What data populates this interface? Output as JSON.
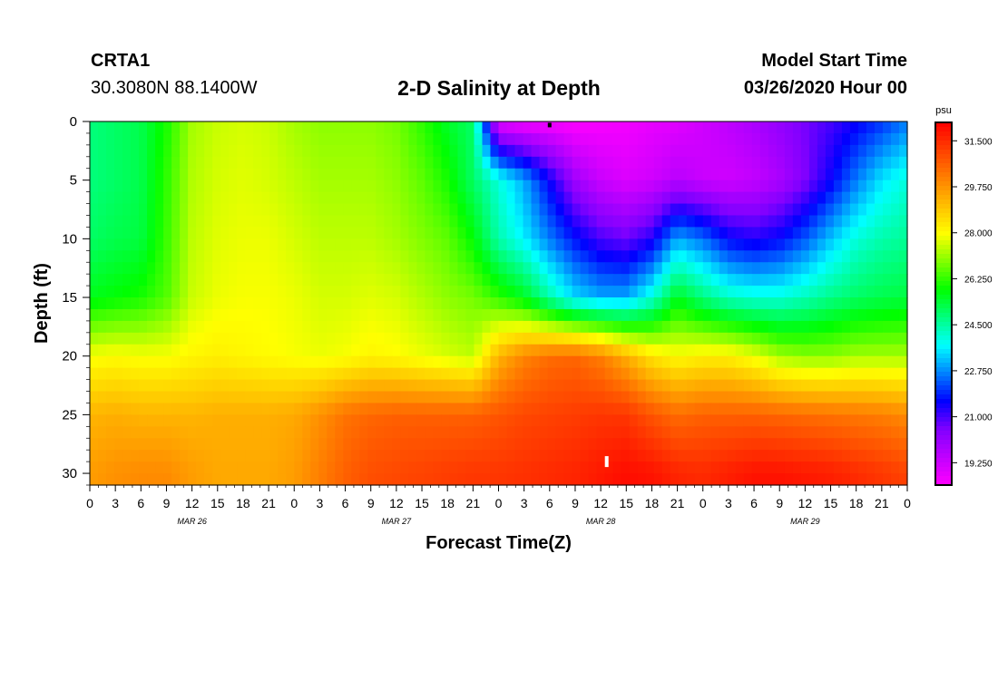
{
  "header": {
    "station": "CRTA1",
    "coords": "30.3080N 88.1400W",
    "title": "2-D Salinity at Depth",
    "model_start_label": "Model Start Time",
    "model_start_value": "03/26/2020 Hour 00"
  },
  "colors": {
    "scale": [
      "#ff00ff",
      "#c000ff",
      "#8000ff",
      "#0000ff",
      "#0080ff",
      "#00ffff",
      "#00ff80",
      "#00ff00",
      "#80ff00",
      "#ffff00",
      "#ffc000",
      "#ff8000",
      "#ff4000",
      "#ff0000"
    ]
  },
  "chart_data": {
    "type": "heatmap",
    "title": "2-D Salinity at Depth",
    "xlabel": "Forecast Time(Z)",
    "ylabel": "Depth (ft)",
    "x_ticks": [
      "0",
      "3",
      "6",
      "9",
      "12",
      "15",
      "18",
      "21",
      "0",
      "3",
      "6",
      "9",
      "12",
      "15",
      "18",
      "21",
      "0",
      "3",
      "6",
      "9",
      "12",
      "15",
      "18",
      "21",
      "0",
      "3",
      "6",
      "9",
      "12",
      "15",
      "18",
      "21",
      "0"
    ],
    "date_labels": [
      {
        "label": "MAR 26",
        "hour": 12
      },
      {
        "label": "MAR 27",
        "hour": 36
      },
      {
        "label": "MAR 28",
        "hour": 60
      },
      {
        "label": "MAR 29",
        "hour": 84
      }
    ],
    "xlim_hours": [
      0,
      96
    ],
    "ylim_ft": [
      0,
      31
    ],
    "y_ticks": [
      0,
      5,
      10,
      15,
      20,
      25,
      30
    ],
    "colorbar": {
      "unit": "psu",
      "range": [
        18.4,
        32.2
      ],
      "ticks": [
        "31.500",
        "29.750",
        "28.000",
        "26.250",
        "24.500",
        "22.750",
        "21.000",
        "19.250"
      ]
    },
    "hours": [
      0,
      3,
      6,
      9,
      12,
      15,
      18,
      21,
      24,
      27,
      30,
      33,
      36,
      39,
      42,
      45,
      48,
      51,
      54,
      57,
      60,
      63,
      66,
      69,
      72,
      75,
      78,
      81,
      84,
      87,
      90,
      93,
      96
    ],
    "depths_ft": [
      0,
      5,
      10,
      15,
      20,
      25,
      30
    ],
    "salinity_psu": [
      [
        24.8,
        25.0,
        25.2,
        26.0,
        27.2,
        27.5,
        27.6,
        27.5,
        27.2,
        27.0,
        27.0,
        27.0,
        26.8,
        26.2,
        25.5,
        25.0,
        18.8,
        18.5,
        18.5,
        18.4,
        18.5,
        18.6,
        18.8,
        18.9,
        19.2,
        19.5,
        19.8,
        20.2,
        20.6,
        21.0,
        21.5,
        22.0,
        22.6
      ],
      [
        24.8,
        25.0,
        25.2,
        26.2,
        27.3,
        27.6,
        27.7,
        27.6,
        27.4,
        27.2,
        27.2,
        27.2,
        27.0,
        26.6,
        26.0,
        25.0,
        24.0,
        23.0,
        21.5,
        20.0,
        19.3,
        19.0,
        19.2,
        19.6,
        19.3,
        19.2,
        19.4,
        19.8,
        20.5,
        21.5,
        22.6,
        23.5,
        24.0
      ],
      [
        25.0,
        25.2,
        25.3,
        26.3,
        27.4,
        27.7,
        27.8,
        27.8,
        27.6,
        27.4,
        27.4,
        27.4,
        27.2,
        26.9,
        26.6,
        25.8,
        24.4,
        23.6,
        22.6,
        21.7,
        21.0,
        20.7,
        21.3,
        23.0,
        22.5,
        21.6,
        21.3,
        21.6,
        22.3,
        23.2,
        24.0,
        24.4,
        24.6
      ],
      [
        25.6,
        25.8,
        26.0,
        26.5,
        27.5,
        27.8,
        27.9,
        27.9,
        27.8,
        27.6,
        27.6,
        27.7,
        27.6,
        27.3,
        27.0,
        26.8,
        26.2,
        25.6,
        24.4,
        23.4,
        23.0,
        23.0,
        24.0,
        25.6,
        24.8,
        24.2,
        24.0,
        24.0,
        24.3,
        24.7,
        25.0,
        25.2,
        25.3
      ],
      [
        27.9,
        28.0,
        27.9,
        27.9,
        28.1,
        28.2,
        28.1,
        28.0,
        27.9,
        27.8,
        27.9,
        28.1,
        28.0,
        27.8,
        27.6,
        27.4,
        29.2,
        30.0,
        30.4,
        30.5,
        30.1,
        29.3,
        28.4,
        28.0,
        28.2,
        28.2,
        27.8,
        27.2,
        27.0,
        27.0,
        27.2,
        27.2,
        27.2
      ],
      [
        29.2,
        29.3,
        29.2,
        29.2,
        29.2,
        29.3,
        29.3,
        29.3,
        29.4,
        29.8,
        30.3,
        30.5,
        30.6,
        30.6,
        30.6,
        30.6,
        30.8,
        31.0,
        31.1,
        31.2,
        31.3,
        31.3,
        30.8,
        30.4,
        30.6,
        30.6,
        30.6,
        30.5,
        30.4,
        30.3,
        30.2,
        30.1,
        29.9
      ],
      [
        29.6,
        29.8,
        29.9,
        29.9,
        29.6,
        29.4,
        29.4,
        29.4,
        29.6,
        30.1,
        30.6,
        30.9,
        31.0,
        31.1,
        31.2,
        31.3,
        31.3,
        31.4,
        31.5,
        31.6,
        31.8,
        32.0,
        31.9,
        31.6,
        31.5,
        31.7,
        31.9,
        31.9,
        31.8,
        31.7,
        31.5,
        31.3,
        31.1
      ]
    ],
    "annotations": [
      {
        "type": "marker",
        "color": "#000000",
        "hour": 54,
        "depth_ft": 0.3
      },
      {
        "type": "marker",
        "color": "#ffffff",
        "hour": 60.7,
        "depth_ft": 29
      }
    ]
  }
}
